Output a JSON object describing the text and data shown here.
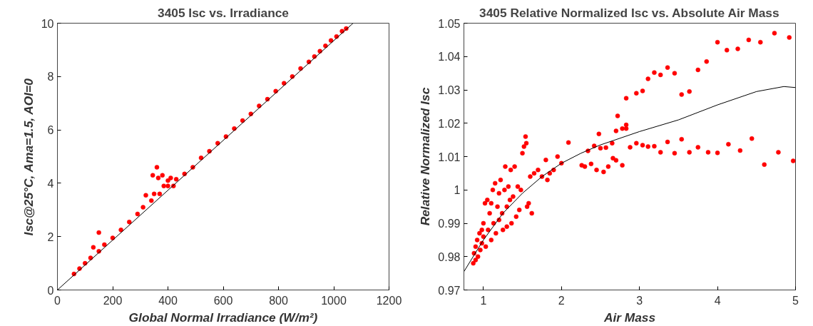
{
  "chart_data": [
    {
      "type": "scatter",
      "title": "3405 Isc vs. Irradiance",
      "xlabel": "Global Normal Irradiance (W/m²)",
      "ylabel": "Isc@25°C, Ama=1.5, AOI=0",
      "xlim": [
        0,
        1200
      ],
      "ylim": [
        0,
        10
      ],
      "xticks": [
        0,
        200,
        400,
        600,
        800,
        1000,
        1200
      ],
      "yticks": [
        0,
        2,
        4,
        6,
        8,
        10
      ],
      "grid": false,
      "marker": "circle",
      "series": [
        {
          "type": "scatter",
          "color": "#ff0000",
          "x": [
            60,
            80,
            100,
            120,
            130,
            150,
            150,
            170,
            200,
            230,
            260,
            290,
            310,
            320,
            340,
            345,
            350,
            360,
            365,
            370,
            380,
            385,
            400,
            400,
            410,
            420,
            430,
            460,
            490,
            520,
            550,
            580,
            610,
            640,
            670,
            700,
            730,
            760,
            790,
            820,
            850,
            880,
            910,
            930,
            950,
            970,
            990,
            1010,
            1030,
            1045
          ],
          "values": [
            0.6,
            0.8,
            1.0,
            1.2,
            1.6,
            1.45,
            2.15,
            1.7,
            1.95,
            2.25,
            2.55,
            2.85,
            3.1,
            3.55,
            3.35,
            4.3,
            3.6,
            4.6,
            4.2,
            3.6,
            4.3,
            3.9,
            3.9,
            4.1,
            4.2,
            3.9,
            4.15,
            4.35,
            4.6,
            4.95,
            5.2,
            5.5,
            5.75,
            6.05,
            6.35,
            6.6,
            6.9,
            7.15,
            7.45,
            7.75,
            8.0,
            8.3,
            8.55,
            8.75,
            8.95,
            9.15,
            9.35,
            9.5,
            9.7,
            9.8
          ]
        },
        {
          "type": "line",
          "color": "#000000",
          "marker": "none",
          "x": [
            0,
            1070
          ],
          "values": [
            0,
            10
          ]
        }
      ]
    },
    {
      "type": "scatter",
      "title": "3405 Relative Normalized Isc vs. Absolute Air Mass",
      "xlabel": "Air Mass",
      "ylabel": "Relative Normalized Isc",
      "xlim": [
        0.75,
        5
      ],
      "ylim": [
        0.97,
        1.05
      ],
      "xticks": [
        1,
        2,
        3,
        4,
        5
      ],
      "yticks": [
        0.97,
        0.98,
        0.99,
        1,
        1.01,
        1.02,
        1.03,
        1.04,
        1.05
      ],
      "grid": false,
      "marker": "circle",
      "series": [
        {
          "type": "scatter",
          "color": "#ff0000",
          "x": [
            0.87,
            0.88,
            0.9,
            0.9,
            0.92,
            0.93,
            0.95,
            0.96,
            0.98,
            0.98,
            1.0,
            1.0,
            1.02,
            1.03,
            1.05,
            1.06,
            1.08,
            1.1,
            1.1,
            1.12,
            1.13,
            1.15,
            1.16,
            1.18,
            1.2,
            1.2,
            1.22,
            1.24,
            1.25,
            1.27,
            1.28,
            1.3,
            1.3,
            1.32,
            1.34,
            1.35,
            1.36,
            1.38,
            1.4,
            1.42,
            1.44,
            1.46,
            1.48,
            1.5,
            1.52,
            1.54,
            1.55,
            1.56,
            1.58,
            1.6,
            1.62,
            1.65,
            1.7,
            1.75,
            1.8,
            1.82,
            1.85,
            1.9,
            1.95,
            2.0,
            2.09,
            2.26,
            2.3,
            2.34,
            2.38,
            2.42,
            2.45,
            2.48,
            2.5,
            2.54,
            2.57,
            2.6,
            2.65,
            2.66,
            2.7,
            2.72,
            2.7,
            2.78,
            2.78,
            2.83,
            2.83,
            2.83,
            2.96,
            3.04,
            3.11,
            3.19,
            3.27,
            3.36,
            3.45,
            3.54,
            3.64,
            3.75,
            3.86,
            4.0,
            4.12,
            4.26,
            4.4,
            4.55,
            4.73,
            4.92,
            2.88,
            2.96,
            3.04,
            3.11,
            3.19,
            3.27,
            3.36,
            3.45,
            3.54,
            3.64,
            3.75,
            3.88,
            4.0,
            4.14,
            4.29,
            4.44,
            4.6,
            4.78,
            4.97
          ],
          "values": [
            0.978,
            0.981,
            0.983,
            0.979,
            0.985,
            0.98,
            0.987,
            0.982,
            0.988,
            0.984,
            0.99,
            0.986,
            0.996,
            0.983,
            0.997,
            0.988,
            0.993,
            0.985,
            0.996,
            1.0,
            0.99,
            1.002,
            0.987,
            0.995,
            0.999,
            0.991,
            1.003,
            0.993,
            0.988,
            1.0,
            1.007,
            0.995,
            0.989,
            1.001,
            0.997,
            1.006,
            0.99,
            0.998,
            1.007,
            0.992,
            1.001,
            0.994,
            1.0,
            1.011,
            1.013,
            1.016,
            1.014,
            0.995,
            0.996,
            1.004,
            0.993,
            1.005,
            1.006,
            1.004,
            1.009,
            1.003,
            1.005,
            1.006,
            1.01,
            1.008,
            1.0142,
            1.0074,
            1.007,
            1.0117,
            1.0078,
            1.0132,
            1.006,
            1.0168,
            1.0125,
            1.0054,
            1.0127,
            1.007,
            1.014,
            1.0095,
            1.0089,
            1.0222,
            1.0177,
            1.0074,
            1.0184,
            1.0195,
            1.0184,
            1.0275,
            1.029,
            1.0297,
            1.0333,
            1.0352,
            1.0345,
            1.0367,
            1.035,
            1.0286,
            1.0295,
            1.036,
            1.0385,
            1.0443,
            1.0419,
            1.0423,
            1.045,
            1.0443,
            1.047,
            1.0457,
            1.0128,
            1.014,
            1.0134,
            1.013,
            1.0131,
            1.0113,
            1.0144,
            1.011,
            1.0152,
            1.0113,
            1.0128,
            1.0113,
            1.0111,
            1.0137,
            1.0118,
            1.0154,
            1.0076,
            1.0113,
            1.0087
          ]
        },
        {
          "type": "line",
          "color": "#000000",
          "marker": "none",
          "x": [
            0.75,
            1.0,
            1.25,
            1.5,
            1.75,
            2.0,
            2.25,
            2.5,
            3.0,
            3.5,
            4.0,
            4.5,
            4.85,
            5.0
          ],
          "values": [
            0.9755,
            0.985,
            0.993,
            0.999,
            1.004,
            1.008,
            1.011,
            1.0135,
            1.0175,
            1.021,
            1.0255,
            1.0295,
            1.031,
            1.0307
          ]
        }
      ]
    }
  ]
}
